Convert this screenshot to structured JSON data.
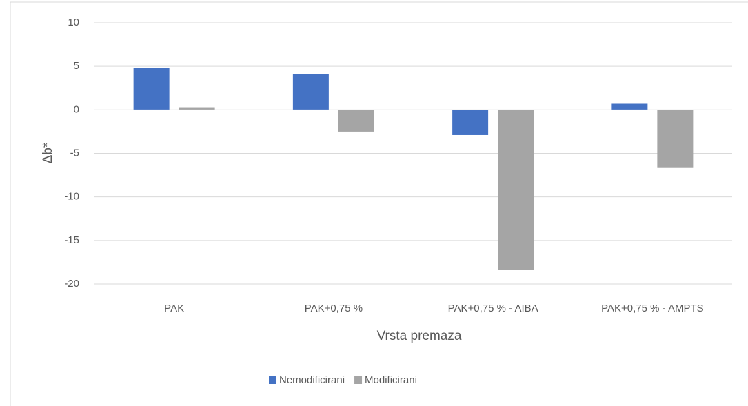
{
  "chart_data": {
    "type": "bar",
    "categories": [
      "PAK",
      "PAK+0,75 %",
      "PAK+0,75 % - AIBA",
      "PAK+0,75 % - AMPTS"
    ],
    "series": [
      {
        "name": "Nemodificirani",
        "color": "#4472c4",
        "values": [
          4.8,
          4.1,
          -2.9,
          0.7
        ]
      },
      {
        "name": "Modificirani",
        "color": "#a5a5a5",
        "values": [
          0.3,
          -2.5,
          -18.4,
          -6.6
        ]
      }
    ],
    "xlabel": "Vrsta premaza",
    "ylabel": "Δb*",
    "ylim": [
      -20,
      10
    ],
    "yticks": [
      -20,
      -15,
      -10,
      -5,
      0,
      5,
      10
    ],
    "grid": true,
    "legend": "bottom"
  }
}
